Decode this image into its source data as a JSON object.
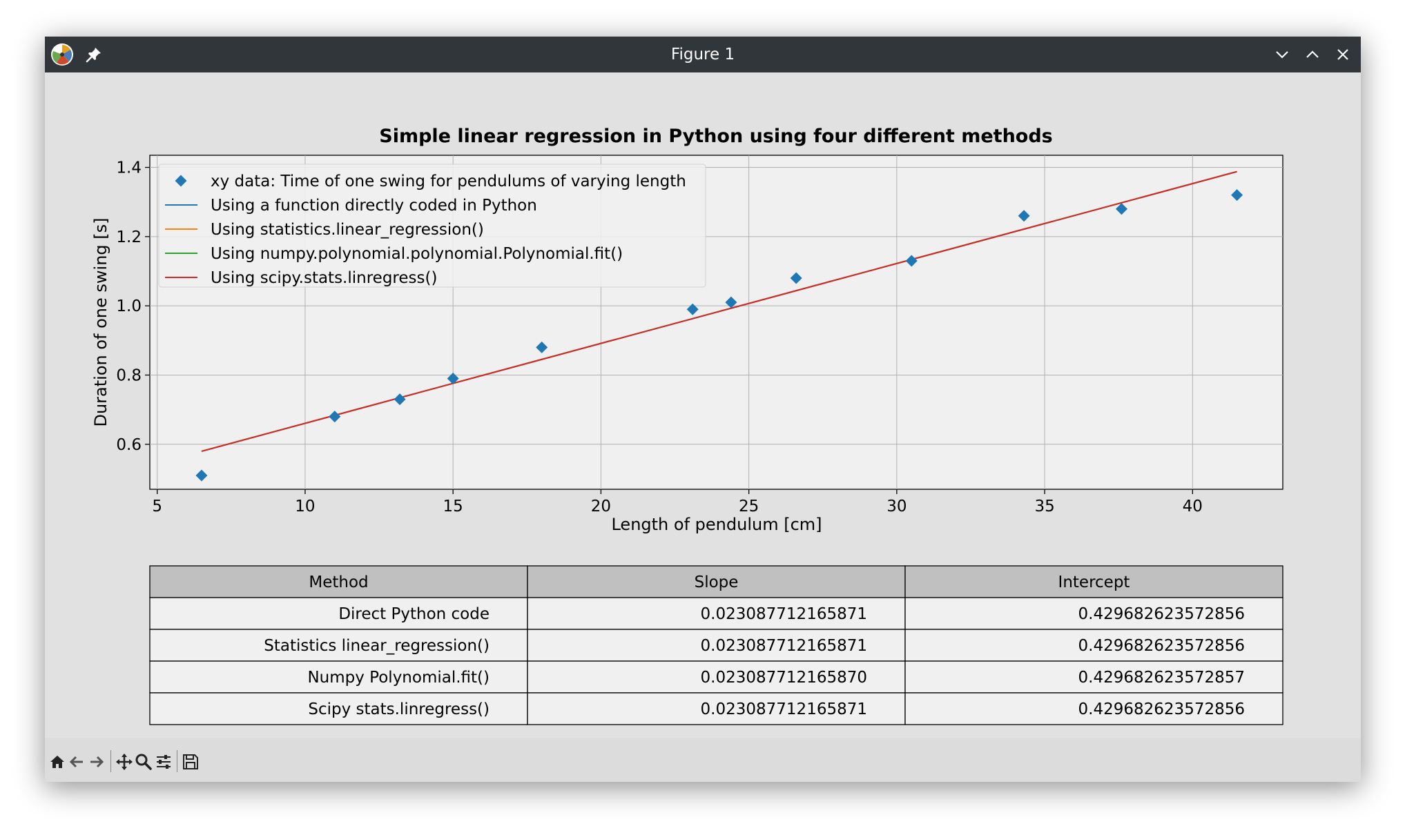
{
  "window": {
    "title": "Figure 1"
  },
  "chart_data": {
    "type": "scatter",
    "title": "Simple linear regression in Python using four different methods",
    "xlabel": "Length of pendulum [cm]",
    "ylabel": "Duration of one swing [s]",
    "xlim": [
      4.75,
      43.05
    ],
    "ylim": [
      0.47,
      1.435
    ],
    "xticks": [
      5,
      10,
      15,
      20,
      25,
      30,
      35,
      40
    ],
    "xtick_labels": [
      "5",
      "10",
      "15",
      "20",
      "25",
      "30",
      "35",
      "40"
    ],
    "yticks": [
      0.6,
      0.8,
      1.0,
      1.2,
      1.4
    ],
    "ytick_labels": [
      "0.6",
      "0.8",
      "1.0",
      "1.2",
      "1.4"
    ],
    "grid": true,
    "legend_position": "top-left",
    "series": [
      {
        "name": "xy data: Time of one swing for pendulums of varying length",
        "kind": "scatter",
        "marker": "diamond",
        "color": "#1f77b4",
        "x": [
          6.5,
          11.0,
          13.2,
          15.0,
          18.0,
          23.1,
          24.4,
          26.6,
          30.5,
          34.3,
          37.6,
          41.5
        ],
        "y": [
          0.51,
          0.68,
          0.73,
          0.79,
          0.88,
          0.99,
          1.01,
          1.08,
          1.13,
          1.26,
          1.28,
          1.32
        ]
      },
      {
        "name": "Using a function directly coded in Python",
        "kind": "line",
        "color": "#1f77b4",
        "slope": 0.023087712165871,
        "intercept": 0.429682623572856,
        "x": [
          6.5,
          41.5
        ]
      },
      {
        "name": "Using statistics.linear_regression()",
        "kind": "line",
        "color": "#ff7f0e",
        "slope": 0.023087712165871,
        "intercept": 0.429682623572856,
        "x": [
          6.5,
          41.5
        ]
      },
      {
        "name": "Using numpy.polynomial.polynomial.Polynomial.fit()",
        "kind": "line",
        "color": "#2ca02c",
        "slope": 0.02308771216587,
        "intercept": 0.429682623572857,
        "x": [
          6.5,
          41.5
        ]
      },
      {
        "name": "Using scipy.stats.linregress()",
        "kind": "line",
        "color": "#d62728",
        "slope": 0.023087712165871,
        "intercept": 0.429682623572856,
        "x": [
          6.5,
          41.5
        ]
      }
    ]
  },
  "table": {
    "headers": [
      "Method",
      "Slope",
      "Intercept"
    ],
    "rows": [
      [
        "Direct Python code",
        "0.023087712165871",
        "0.429682623572856"
      ],
      [
        "Statistics linear_regression()",
        "0.023087712165871",
        "0.429682623572856"
      ],
      [
        "Numpy Polynomial.fit()",
        "0.023087712165870",
        "0.429682623572857"
      ],
      [
        "Scipy stats.linregress()",
        "0.023087712165871",
        "0.429682623572856"
      ]
    ]
  },
  "toolbar": {
    "icons": [
      "home-icon",
      "back-arrow-icon",
      "forward-arrow-icon",
      "pan-icon",
      "zoom-icon",
      "configure-subplots-icon",
      "save-icon"
    ]
  }
}
